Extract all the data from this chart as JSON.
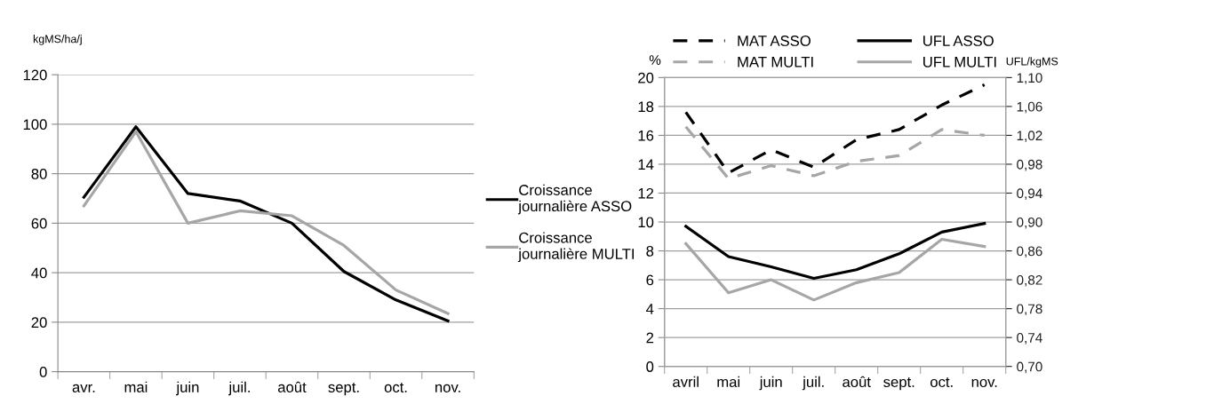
{
  "chart_data": [
    {
      "type": "line",
      "ylabel": "kgMS/ha/j",
      "categories": [
        "avr.",
        "mai",
        "juin",
        "juil.",
        "août",
        "sept.",
        "oct.",
        "nov."
      ],
      "series": [
        {
          "name": "Croissance journalière ASSO",
          "color": "#000000",
          "values": [
            70.5,
            99,
            72,
            69,
            60,
            40.5,
            29,
            20.5
          ]
        },
        {
          "name": "Croissance journalière MULTI",
          "color": "#a6a6a6",
          "values": [
            67,
            97,
            60,
            65,
            63,
            51,
            33,
            23.5
          ]
        }
      ],
      "ylim": [
        0,
        120
      ],
      "yticks": [
        0,
        20,
        40,
        60,
        80,
        100,
        120
      ],
      "grid": "y",
      "legend": "right",
      "line_style": "solid"
    },
    {
      "type": "line",
      "ylabel": "%",
      "y2label": "UFL/kgMS",
      "categories": [
        "avril",
        "mai",
        "juin",
        "juil.",
        "août",
        "sept.",
        "oct.",
        "nov."
      ],
      "series": [
        {
          "name": "MAT ASSO",
          "color": "#000000",
          "line_style": "dashed",
          "values": [
            17.6,
            13.4,
            15.0,
            13.8,
            15.7,
            16.4,
            18.1,
            19.5
          ]
        },
        {
          "name": "MAT MULTI",
          "color": "#a6a6a6",
          "line_style": "dashed",
          "values": [
            16.6,
            13.0,
            13.9,
            13.2,
            14.2,
            14.6,
            16.4,
            16.0
          ]
        },
        {
          "name": "UFL ASSO",
          "color": "#000000",
          "line_style": "solid",
          "axis": "y2",
          "values": [
            0.894,
            0.852,
            0.838,
            0.822,
            0.834,
            0.856,
            0.886,
            0.898
          ]
        },
        {
          "name": "UFL MULTI",
          "color": "#a6a6a6",
          "line_style": "solid",
          "axis": "y2",
          "values": [
            0.87,
            0.802,
            0.82,
            0.792,
            0.816,
            0.83,
            0.876,
            0.866
          ]
        }
      ],
      "ylim": [
        0,
        20
      ],
      "yticks": [
        0,
        2,
        4,
        6,
        8,
        10,
        12,
        14,
        16,
        18,
        20
      ],
      "y2lim": [
        0.7,
        1.1
      ],
      "y2ticks": [
        {
          "value": 0.7,
          "label": "0,70"
        },
        {
          "value": 0.74,
          "label": "0,74"
        },
        {
          "value": 0.78,
          "label": "0,78"
        },
        {
          "value": 0.82,
          "label": "0,82"
        },
        {
          "value": 0.86,
          "label": "0,86"
        },
        {
          "value": 0.9,
          "label": "0,90"
        },
        {
          "value": 0.94,
          "label": "0,94"
        },
        {
          "value": 0.98,
          "label": "0,98"
        },
        {
          "value": 1.02,
          "label": "1,02"
        },
        {
          "value": 1.06,
          "label": "1,06"
        },
        {
          "value": 1.1,
          "label": "1,10"
        }
      ],
      "grid": "y",
      "legend": "top"
    }
  ]
}
